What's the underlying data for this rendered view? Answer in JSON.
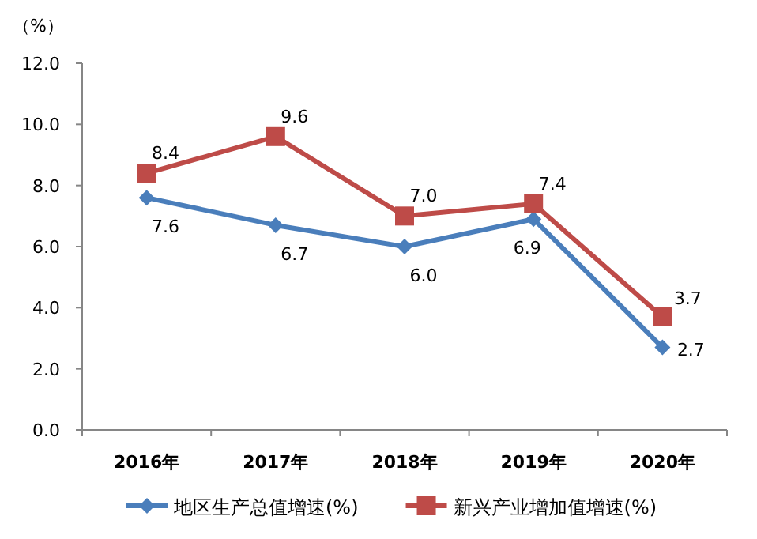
{
  "chart_data": {
    "type": "line",
    "ylabel": "（%）",
    "categories": [
      "2016年",
      "2017年",
      "2018年",
      "2019年",
      "2020年"
    ],
    "series": [
      {
        "name": "地区生产总值增速(%)",
        "color": "#4a7ebb",
        "marker": "diamond",
        "values": [
          7.6,
          6.7,
          6.0,
          6.9,
          2.7
        ],
        "value_labels": [
          "7.6",
          "6.7",
          "6.0",
          "6.9",
          "2.7"
        ]
      },
      {
        "name": "新兴产业增加值增速(%)",
        "color": "#be4b48",
        "marker": "square",
        "values": [
          8.4,
          9.6,
          7.0,
          7.4,
          3.7
        ],
        "value_labels": [
          "8.4",
          "9.6",
          "7.0",
          "7.4",
          "3.7"
        ]
      }
    ],
    "ylim": [
      0,
      12
    ],
    "yticks": [
      {
        "value": 0,
        "label": "0.0"
      },
      {
        "value": 2,
        "label": "2.0"
      },
      {
        "value": 4,
        "label": "4.0"
      },
      {
        "value": 6,
        "label": "6.0"
      },
      {
        "value": 8,
        "label": "8.0"
      },
      {
        "value": 10,
        "label": "10.0"
      },
      {
        "value": 12,
        "label": "12.0"
      }
    ],
    "grid": false,
    "legend": "bottom"
  }
}
